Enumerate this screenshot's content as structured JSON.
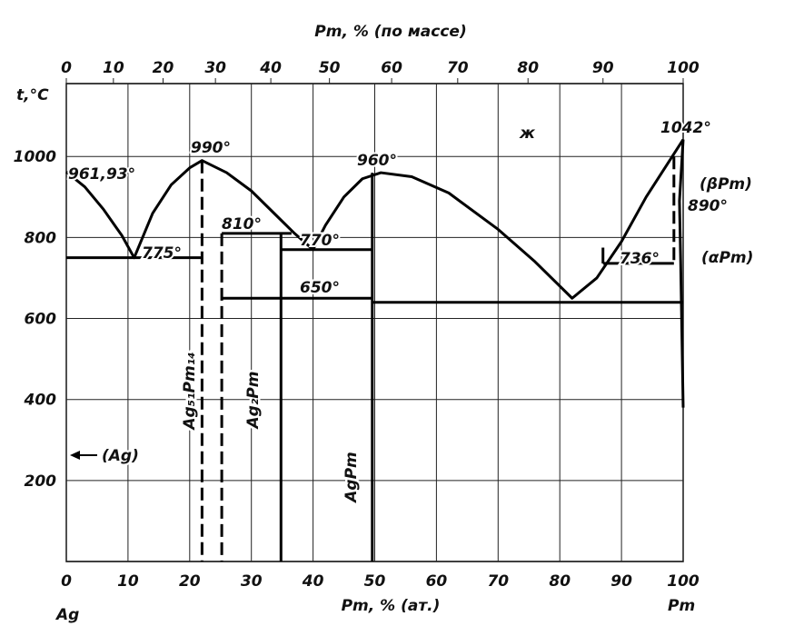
{
  "chart_data": {
    "type": "line",
    "title": "Pm, % (по массе)",
    "x_label": "Pm, % (ат.)",
    "y_label": "t,°C",
    "left_element": "Ag",
    "right_element": "Pm",
    "xlim": [
      0,
      100
    ],
    "ylim": [
      0,
      1180
    ],
    "xticks": [
      0,
      10,
      20,
      30,
      40,
      50,
      60,
      70,
      80,
      90,
      100
    ],
    "top_xticks": [
      0,
      10,
      20,
      30,
      40,
      50,
      60,
      70,
      80,
      90,
      100
    ],
    "yticks": [
      200,
      400,
      600,
      800,
      1000
    ],
    "grid": true,
    "color": "#000000",
    "series": [
      {
        "style": "solid",
        "x": [
          0,
          3,
          6,
          9,
          11,
          14,
          17,
          20,
          22,
          26,
          30,
          34,
          37,
          40,
          42,
          45,
          48,
          51,
          56,
          62,
          70,
          76,
          82,
          86,
          90,
          94,
          100
        ],
        "values": [
          961.93,
          925,
          870,
          805,
          750,
          860,
          930,
          972,
          990,
          960,
          915,
          855,
          810,
          770,
          830,
          900,
          945,
          960,
          950,
          910,
          820,
          740,
          650,
          700,
          790,
          900,
          1042
        ]
      },
      {
        "style": "solid",
        "x": [
          0,
          22
        ],
        "values": [
          750,
          750
        ]
      },
      {
        "style": "solid",
        "x": [
          25.2,
          36.5
        ],
        "values": [
          810,
          810
        ]
      },
      {
        "style": "solid",
        "x": [
          34.8,
          49.6
        ],
        "values": [
          770,
          770
        ]
      },
      {
        "style": "solid",
        "x": [
          25.2,
          49.6
        ],
        "values": [
          650,
          650
        ]
      },
      {
        "style": "solid",
        "x": [
          49.6,
          100
        ],
        "values": [
          640,
          640
        ]
      },
      {
        "style": "solid",
        "x": [
          87,
          98.5
        ],
        "values": [
          736,
          736
        ]
      },
      {
        "style": "solid",
        "x": [
          87,
          87
        ],
        "values": [
          736,
          775
        ]
      },
      {
        "style": "dashed",
        "x": [
          22,
          22
        ],
        "values": [
          990,
          0
        ]
      },
      {
        "style": "dashed",
        "x": [
          25.2,
          25.2
        ],
        "values": [
          810,
          0
        ]
      },
      {
        "style": "solid",
        "x": [
          34.8,
          34.8
        ],
        "values": [
          810,
          0
        ]
      },
      {
        "style": "solid",
        "x": [
          49.6,
          49.6
        ],
        "values": [
          960,
          0
        ]
      },
      {
        "style": "dashed",
        "x": [
          98.5,
          98.5
        ],
        "values": [
          1000,
          736
        ]
      },
      {
        "style": "solid",
        "x": [
          100,
          99.4,
          99.6,
          100
        ],
        "values": [
          1042,
          890,
          736,
          380
        ]
      }
    ],
    "annotations": [
      "961,93°",
      "775°",
      "990°",
      "810°",
      "770°",
      "960°",
      "650°",
      "736°",
      "1042°",
      "(βPm)",
      "890°",
      "(αPm)",
      "ж",
      "(Ag)"
    ],
    "phases": [
      "Ag₅₁Pm₁₄",
      "Ag₂Pm",
      "AgPm"
    ]
  }
}
